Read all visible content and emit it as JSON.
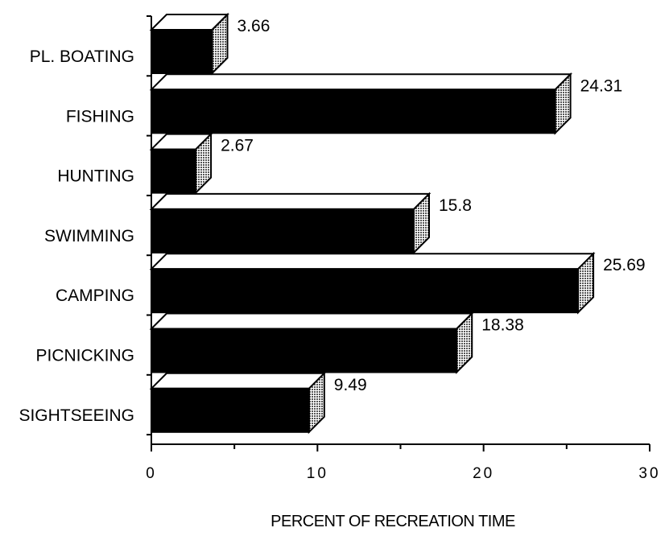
{
  "chart_data": {
    "type": "bar",
    "orientation": "horizontal",
    "style": "3d",
    "categories": [
      "PL. BOATING",
      "FISHING",
      "HUNTING",
      "SWIMMING",
      "CAMPING",
      "PICNICKING",
      "SIGHTSEEING"
    ],
    "values": [
      3.66,
      24.31,
      2.67,
      15.8,
      25.69,
      18.38,
      9.49
    ],
    "value_labels": [
      "3.66",
      "24.31",
      "2.67",
      "15.8",
      "25.69",
      "18.38",
      "9.49"
    ],
    "xlabel": "PERCENT OF RECREATION TIME",
    "ylabel": "",
    "xlim": [
      0,
      30
    ],
    "xticks": [
      0,
      10,
      20,
      30
    ],
    "xtick_labels": [
      "0",
      "10",
      "20",
      "30"
    ],
    "grid": false,
    "colors": {
      "bar_front": "#000000",
      "bar_top": "#ffffff",
      "bar_side": "#9a9a9a",
      "outline": "#000000"
    }
  }
}
